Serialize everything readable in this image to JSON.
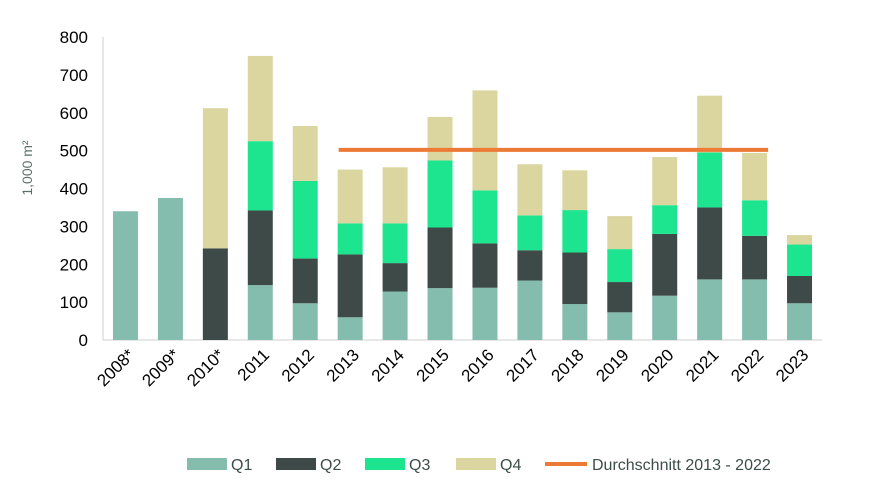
{
  "chart_data": {
    "type": "bar",
    "stacked": true,
    "categories": [
      "2008*",
      "2009*",
      "2010*",
      "2011",
      "2012",
      "2013",
      "2014",
      "2015",
      "2016",
      "2017",
      "2018",
      "2019",
      "2020",
      "2021",
      "2022",
      "2023"
    ],
    "series": [
      {
        "name": "Q1",
        "color": "#84bcae",
        "values": [
          340,
          375,
          0,
          145,
          97,
          60,
          128,
          137,
          138,
          157,
          95,
          73,
          117,
          160,
          160,
          97
        ]
      },
      {
        "name": "Q2",
        "color": "#3d4a48",
        "values": [
          0,
          0,
          242,
          197,
          118,
          166,
          75,
          160,
          117,
          80,
          136,
          80,
          163,
          190,
          115,
          72
        ]
      },
      {
        "name": "Q3",
        "color": "#1de58f",
        "values": [
          0,
          0,
          0,
          183,
          205,
          82,
          105,
          177,
          140,
          92,
          112,
          87,
          76,
          145,
          94,
          83
        ]
      },
      {
        "name": "Q4",
        "color": "#dbd69f",
        "values": [
          0,
          0,
          370,
          225,
          145,
          142,
          148,
          115,
          264,
          135,
          105,
          87,
          127,
          150,
          125,
          25
        ]
      }
    ],
    "average_line": {
      "name": "Durchschnitt 2013 - 2022",
      "value": 502,
      "from": "2013",
      "to": "2022",
      "color": "#ec7a35"
    },
    "ylabel": "1,000 m²",
    "xlabel": "",
    "ylim": [
      0,
      800
    ],
    "yticks": [
      0,
      100,
      200,
      300,
      400,
      500,
      600,
      700,
      800
    ],
    "grid": false,
    "legend_position": "bottom"
  }
}
